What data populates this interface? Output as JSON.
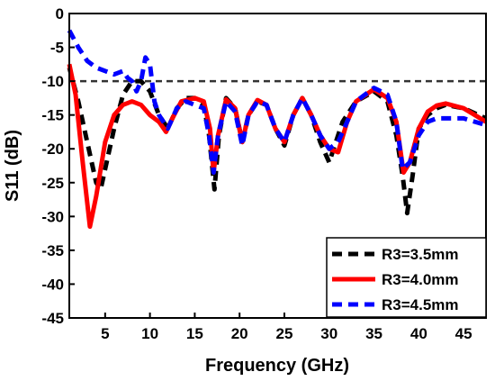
{
  "chart_data": {
    "type": "line",
    "xlabel": "Frequency (GHz)",
    "ylabel": "S11 (dB)",
    "xlim": [
      1,
      47.5
    ],
    "ylim": [
      -45,
      0
    ],
    "xticks": [
      5,
      10,
      15,
      20,
      25,
      30,
      35,
      40,
      45
    ],
    "yticks": [
      0,
      -5,
      -10,
      -15,
      -20,
      -25,
      -30,
      -35,
      -40,
      -45
    ],
    "reference_line": {
      "y": -10,
      "style": "dashed",
      "color": "#333333"
    },
    "legend_position": "bottom-right",
    "series": [
      {
        "name": "R3=3.5mm",
        "color": "#000000",
        "style": "dashed",
        "points": [
          [
            1,
            -8
          ],
          [
            2,
            -13
          ],
          [
            3,
            -19
          ],
          [
            4,
            -25
          ],
          [
            4.5,
            -26
          ],
          [
            5,
            -23
          ],
          [
            6,
            -17
          ],
          [
            7,
            -12
          ],
          [
            8,
            -10
          ],
          [
            9,
            -10
          ],
          [
            10,
            -11.5
          ],
          [
            11,
            -15
          ],
          [
            12,
            -17
          ],
          [
            13,
            -14
          ],
          [
            14,
            -12.5
          ],
          [
            15,
            -12.5
          ],
          [
            16,
            -13.5
          ],
          [
            16.6,
            -18
          ],
          [
            17.2,
            -26
          ],
          [
            17.7,
            -18
          ],
          [
            18.5,
            -12.5
          ],
          [
            19.5,
            -14
          ],
          [
            20.3,
            -19
          ],
          [
            21,
            -15
          ],
          [
            22,
            -13
          ],
          [
            23,
            -13.5
          ],
          [
            24,
            -17
          ],
          [
            25,
            -19.5
          ],
          [
            26,
            -15
          ],
          [
            27,
            -12.5
          ],
          [
            28,
            -15
          ],
          [
            29,
            -19
          ],
          [
            30,
            -22
          ],
          [
            30.5,
            -20
          ],
          [
            31.5,
            -16
          ],
          [
            33,
            -13
          ],
          [
            35,
            -11.5
          ],
          [
            36.5,
            -13
          ],
          [
            37.5,
            -18
          ],
          [
            38.2,
            -24
          ],
          [
            38.7,
            -29.5
          ],
          [
            39.3,
            -24
          ],
          [
            40,
            -17
          ],
          [
            41,
            -15
          ],
          [
            42,
            -14
          ],
          [
            43,
            -13.5
          ],
          [
            45,
            -14
          ],
          [
            47.5,
            -15.5
          ]
        ]
      },
      {
        "name": "R3=4.0mm",
        "color": "#ff0000",
        "style": "solid",
        "points": [
          [
            1,
            -7.5
          ],
          [
            1.7,
            -12
          ],
          [
            2.5,
            -22
          ],
          [
            3.3,
            -31.5
          ],
          [
            4,
            -27
          ],
          [
            5,
            -19
          ],
          [
            6,
            -15
          ],
          [
            7,
            -13.5
          ],
          [
            8,
            -13
          ],
          [
            9,
            -13.5
          ],
          [
            10,
            -15
          ],
          [
            11,
            -16
          ],
          [
            11.8,
            -17.5
          ],
          [
            12.5,
            -15.5
          ],
          [
            13.5,
            -13
          ],
          [
            15,
            -12.5
          ],
          [
            16,
            -13
          ],
          [
            16.7,
            -17
          ],
          [
            17.1,
            -23.5
          ],
          [
            17.6,
            -18
          ],
          [
            18.5,
            -12.7
          ],
          [
            19.5,
            -14
          ],
          [
            20.3,
            -19
          ],
          [
            21,
            -15
          ],
          [
            22,
            -12.8
          ],
          [
            23,
            -13.5
          ],
          [
            24,
            -17
          ],
          [
            25,
            -19
          ],
          [
            26,
            -15
          ],
          [
            27,
            -12.5
          ],
          [
            28,
            -15
          ],
          [
            29,
            -18
          ],
          [
            30,
            -20
          ],
          [
            31,
            -20.5
          ],
          [
            32,
            -16
          ],
          [
            33,
            -13
          ],
          [
            35,
            -11.2
          ],
          [
            36.5,
            -12.5
          ],
          [
            37.5,
            -16
          ],
          [
            38.3,
            -23.5
          ],
          [
            39,
            -22
          ],
          [
            40,
            -17
          ],
          [
            41,
            -14.5
          ],
          [
            42,
            -13.6
          ],
          [
            43,
            -13.3
          ],
          [
            45,
            -14
          ],
          [
            47.5,
            -16
          ]
        ]
      },
      {
        "name": "R3=4.5mm",
        "color": "#0000ff",
        "style": "dashed",
        "points": [
          [
            1,
            -2.5
          ],
          [
            2,
            -5
          ],
          [
            3,
            -7
          ],
          [
            4,
            -8
          ],
          [
            5,
            -8.5
          ],
          [
            6,
            -9
          ],
          [
            7,
            -8.5
          ],
          [
            7.5,
            -9.5
          ],
          [
            8,
            -10
          ],
          [
            8.5,
            -11.5
          ],
          [
            9,
            -10
          ],
          [
            9.5,
            -6.5
          ],
          [
            10,
            -7.5
          ],
          [
            10.5,
            -13
          ],
          [
            11,
            -15
          ],
          [
            12,
            -17
          ],
          [
            13,
            -14
          ],
          [
            14,
            -13
          ],
          [
            15,
            -13.5
          ],
          [
            16,
            -14
          ],
          [
            16.6,
            -18
          ],
          [
            17.1,
            -23.5
          ],
          [
            17.6,
            -18
          ],
          [
            18.5,
            -13
          ],
          [
            19.5,
            -14.5
          ],
          [
            20.3,
            -19.5
          ],
          [
            21,
            -15
          ],
          [
            22,
            -13
          ],
          [
            23,
            -13.5
          ],
          [
            24,
            -17
          ],
          [
            25,
            -19
          ],
          [
            26,
            -15
          ],
          [
            27,
            -12.5
          ],
          [
            28,
            -15
          ],
          [
            29,
            -18
          ],
          [
            30,
            -20
          ],
          [
            31,
            -19
          ],
          [
            32,
            -16
          ],
          [
            33,
            -13
          ],
          [
            35,
            -11
          ],
          [
            36.5,
            -12
          ],
          [
            37.5,
            -16
          ],
          [
            38.2,
            -23
          ],
          [
            39,
            -22
          ],
          [
            40,
            -18
          ],
          [
            41,
            -16
          ],
          [
            42,
            -15.5
          ],
          [
            43,
            -15.5
          ],
          [
            45,
            -15.5
          ],
          [
            47.5,
            -16.5
          ]
        ]
      }
    ]
  }
}
